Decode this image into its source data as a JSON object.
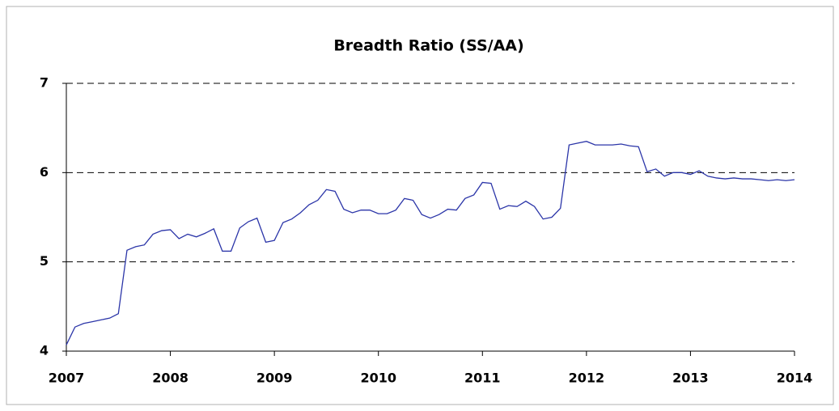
{
  "chart_data": {
    "type": "line",
    "title": "Breadth Ratio (SS/AA)",
    "x": [
      2007,
      2007.083,
      2007.167,
      2007.25,
      2007.333,
      2007.417,
      2007.5,
      2007.583,
      2007.667,
      2007.75,
      2007.833,
      2007.917,
      2008,
      2008.083,
      2008.167,
      2008.25,
      2008.333,
      2008.417,
      2008.5,
      2008.583,
      2008.667,
      2008.75,
      2008.833,
      2008.917,
      2009,
      2009.083,
      2009.167,
      2009.25,
      2009.333,
      2009.417,
      2009.5,
      2009.583,
      2009.667,
      2009.75,
      2009.833,
      2009.917,
      2010,
      2010.083,
      2010.167,
      2010.25,
      2010.333,
      2010.417,
      2010.5,
      2010.583,
      2010.667,
      2010.75,
      2010.833,
      2010.917,
      2011,
      2011.083,
      2011.167,
      2011.25,
      2011.333,
      2011.417,
      2011.5,
      2011.583,
      2011.667,
      2011.75,
      2011.833,
      2011.917,
      2012,
      2012.083,
      2012.167,
      2012.25,
      2012.333,
      2012.417,
      2012.5,
      2012.583,
      2012.667,
      2012.75,
      2012.833,
      2012.917,
      2013,
      2013.083,
      2013.167,
      2013.25,
      2013.333,
      2013.417,
      2013.5,
      2013.583,
      2013.667,
      2013.75,
      2013.833,
      2013.917,
      2014
    ],
    "series": [
      {
        "name": "Breadth Ratio",
        "color": "#2b35a8",
        "values": [
          4.07,
          4.27,
          4.31,
          4.33,
          4.35,
          4.37,
          4.42,
          5.13,
          5.17,
          5.19,
          5.31,
          5.35,
          5.36,
          5.26,
          5.31,
          5.28,
          5.32,
          5.37,
          5.12,
          5.12,
          5.38,
          5.45,
          5.49,
          5.22,
          5.24,
          5.44,
          5.48,
          5.55,
          5.64,
          5.69,
          5.81,
          5.79,
          5.59,
          5.55,
          5.58,
          5.58,
          5.54,
          5.54,
          5.58,
          5.71,
          5.69,
          5.53,
          5.49,
          5.53,
          5.59,
          5.58,
          5.71,
          5.75,
          5.89,
          5.88,
          5.59,
          5.63,
          5.62,
          5.68,
          5.62,
          5.48,
          5.5,
          5.6,
          6.31,
          6.33,
          6.35,
          6.31,
          6.31,
          6.31,
          6.32,
          6.3,
          6.29,
          6.01,
          6.04,
          5.96,
          6,
          6,
          5.98,
          6.02,
          5.96,
          5.94,
          5.93,
          5.94,
          5.93,
          5.93,
          5.92,
          5.91,
          5.92,
          5.91,
          5.92
        ]
      }
    ],
    "xlim": [
      2007,
      2014
    ],
    "xticks": [
      2007,
      2008,
      2009,
      2010,
      2011,
      2012,
      2013,
      2014
    ],
    "ylim": [
      4,
      7
    ],
    "yticks": [
      4,
      5,
      6,
      7
    ],
    "grid": true
  }
}
